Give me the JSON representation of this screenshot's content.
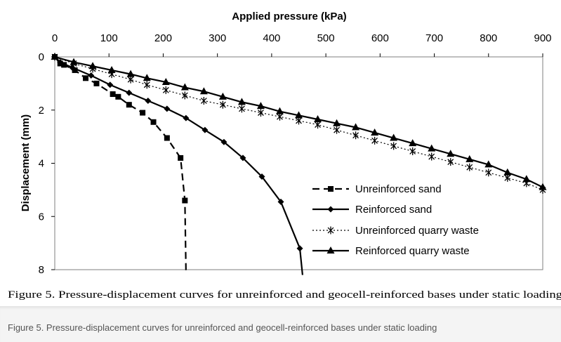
{
  "figure": {
    "cut_off_text": "Figure 5. Pressure-displacement curves for unreinforced and geocell-reinforced bases under static loading"
  },
  "caption": {
    "text": "Figure 5. Pressure-displacement curves for unreinforced and geocell-reinforced bases under static loading"
  },
  "chart_data": {
    "type": "line",
    "title": "",
    "xlabel": "Applied pressure (kPa)",
    "ylabel": "Displacement (mm)",
    "xlim": [
      0,
      900
    ],
    "ylim": [
      0,
      8
    ],
    "y_inverted": true,
    "x_axis_position": "top",
    "x_ticks": [
      "0",
      "100",
      "200",
      "300",
      "400",
      "500",
      "600",
      "700",
      "800",
      "900"
    ],
    "y_ticks": [
      "0",
      "2",
      "4",
      "6",
      "8"
    ],
    "grid": false,
    "legend_position": "lower-right",
    "series": [
      {
        "name": "Unreinforced sand",
        "marker": "square",
        "dash": "dashed",
        "color": "#000000",
        "x": [
          0,
          10,
          17,
          37,
          57,
          77,
          107,
          117,
          137,
          162,
          182,
          207,
          232,
          240,
          242
        ],
        "y": [
          0,
          0.25,
          0.3,
          0.5,
          0.8,
          1.0,
          1.4,
          1.5,
          1.8,
          2.1,
          2.45,
          3.05,
          3.8,
          5.4,
          8.1
        ]
      },
      {
        "name": "Reinforced sand",
        "marker": "diamond",
        "dash": "solid",
        "color": "#000000",
        "x": [
          0,
          10,
          32,
          67,
          102,
          137,
          172,
          207,
          242,
          277,
          312,
          347,
          382,
          417,
          452,
          457
        ],
        "y": [
          0,
          0.2,
          0.4,
          0.7,
          1.05,
          1.35,
          1.65,
          1.95,
          2.3,
          2.75,
          3.2,
          3.8,
          4.5,
          5.45,
          7.2,
          8.2
        ]
      },
      {
        "name": "Unreinforced quarry waste",
        "marker": "asterisk",
        "dash": "dotted",
        "color": "#000000",
        "x": [
          0,
          35,
          70,
          105,
          140,
          170,
          205,
          240,
          275,
          310,
          345,
          380,
          415,
          450,
          485,
          520,
          555,
          590,
          625,
          660,
          695,
          730,
          765,
          800,
          835,
          870,
          900
        ],
        "y": [
          0,
          0.25,
          0.45,
          0.65,
          0.85,
          1.05,
          1.25,
          1.45,
          1.65,
          1.8,
          1.95,
          2.1,
          2.25,
          2.4,
          2.55,
          2.75,
          2.95,
          3.15,
          3.35,
          3.55,
          3.75,
          3.95,
          4.15,
          4.35,
          4.55,
          4.75,
          5.0
        ]
      },
      {
        "name": "Reinforced quarry waste",
        "marker": "triangle",
        "dash": "solid",
        "color": "#000000",
        "x": [
          0,
          35,
          70,
          105,
          140,
          170,
          205,
          240,
          275,
          310,
          345,
          380,
          415,
          450,
          485,
          520,
          555,
          590,
          625,
          660,
          695,
          730,
          765,
          800,
          835,
          870,
          900
        ],
        "y": [
          0,
          0.2,
          0.35,
          0.5,
          0.65,
          0.8,
          0.95,
          1.15,
          1.3,
          1.5,
          1.7,
          1.85,
          2.05,
          2.2,
          2.35,
          2.5,
          2.65,
          2.85,
          3.05,
          3.25,
          3.45,
          3.65,
          3.85,
          4.05,
          4.35,
          4.6,
          4.9
        ]
      }
    ]
  }
}
